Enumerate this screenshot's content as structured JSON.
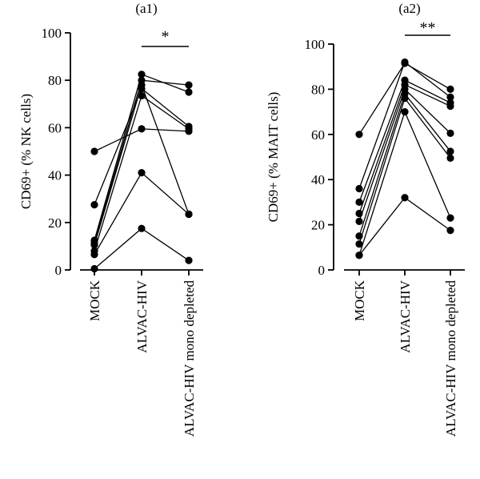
{
  "chart_data": [
    {
      "type": "line",
      "title": "(a1)",
      "ylabel": "CD69+ (% NK cells)",
      "xlabel": "",
      "categories": [
        "MOCK",
        "ALVAC-HIV",
        "ALVAC-HIV mono depleted"
      ],
      "ylim": [
        0,
        100
      ],
      "yticks": [
        0,
        20,
        40,
        60,
        80,
        100
      ],
      "grid": false,
      "legend": "none",
      "significance": {
        "label": "*",
        "from": "ALVAC-HIV",
        "to": "ALVAC-HIV mono depleted"
      },
      "series": [
        {
          "values": [
            50,
            59.5,
            58.5
          ]
        },
        {
          "values": [
            27.5,
            76.5,
            60.5
          ]
        },
        {
          "values": [
            12.5,
            82.5,
            75
          ]
        },
        {
          "values": [
            11.5,
            80,
            78
          ]
        },
        {
          "values": [
            10.5,
            78,
            23.5
          ]
        },
        {
          "values": [
            8,
            73.5,
            59.5
          ]
        },
        {
          "values": [
            6.5,
            41,
            23.5
          ]
        },
        {
          "values": [
            0.5,
            17.5,
            4
          ]
        }
      ]
    },
    {
      "type": "line",
      "title": "(a2)",
      "ylabel": "CD69+ (% MAIT cells)",
      "xlabel": "",
      "categories": [
        "MOCK",
        "ALVAC-HIV",
        "ALVAC-HIV mono depleted"
      ],
      "ylim": [
        0,
        100
      ],
      "yticks": [
        0,
        20,
        40,
        60,
        80,
        100
      ],
      "grid": false,
      "legend": "none",
      "significance": {
        "label": "**",
        "from": "ALVAC-HIV",
        "to": "ALVAC-HIV mono depleted"
      },
      "series": [
        {
          "values": [
            60,
            91.5,
            80
          ]
        },
        {
          "values": [
            36,
            92,
            76.5
          ]
        },
        {
          "values": [
            30,
            84,
            74
          ]
        },
        {
          "values": [
            25,
            82,
            72.5
          ]
        },
        {
          "values": [
            21.5,
            80,
            60.5
          ]
        },
        {
          "values": [
            15,
            78,
            52.5
          ]
        },
        {
          "values": [
            11.5,
            76,
            49.5
          ]
        },
        {
          "values": [
            6.5,
            70,
            23
          ]
        },
        {
          "values": [
            6.5,
            32,
            17.5
          ]
        }
      ]
    }
  ]
}
